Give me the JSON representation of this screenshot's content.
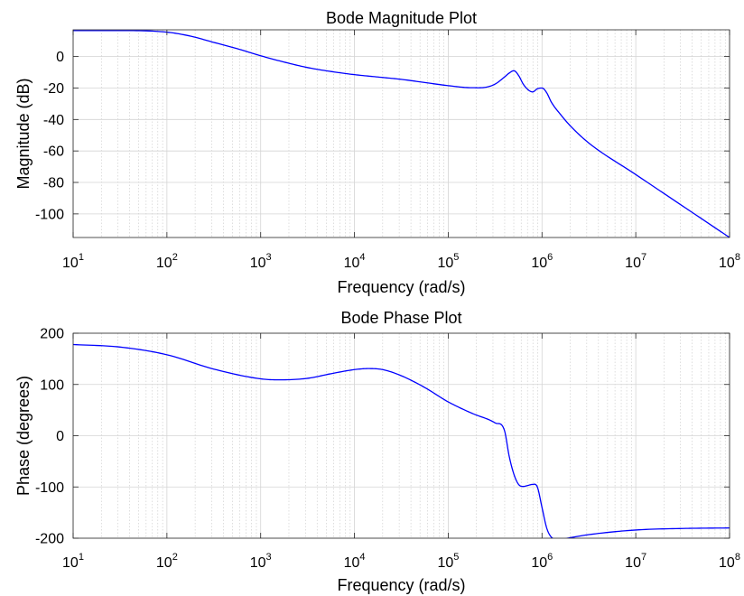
{
  "chart_data": [
    {
      "type": "line",
      "title": "Bode Magnitude Plot",
      "xlabel": "Frequency (rad/s)",
      "ylabel": "Magnitude (dB)",
      "xscale": "log",
      "xlim": [
        10,
        100000000
      ],
      "ylim": [
        -115,
        17
      ],
      "grid": true,
      "x_ticks": [
        {
          "base": "10",
          "exp": "1",
          "value": 10
        },
        {
          "base": "10",
          "exp": "2",
          "value": 100
        },
        {
          "base": "10",
          "exp": "3",
          "value": 1000
        },
        {
          "base": "10",
          "exp": "4",
          "value": 10000
        },
        {
          "base": "10",
          "exp": "5",
          "value": 100000
        },
        {
          "base": "10",
          "exp": "6",
          "value": 1000000
        },
        {
          "base": "10",
          "exp": "7",
          "value": 10000000
        },
        {
          "base": "10",
          "exp": "8",
          "value": 100000000
        }
      ],
      "y_ticks": [
        {
          "label": "0",
          "value": 0
        },
        {
          "label": "-20",
          "value": -20
        },
        {
          "label": "-40",
          "value": -40
        },
        {
          "label": "-60",
          "value": -60
        },
        {
          "label": "-80",
          "value": -80
        },
        {
          "label": "-100",
          "value": -100
        }
      ],
      "line_color": "#0000ff",
      "series": [
        {
          "x": [
            10,
            31.6,
            100,
            178,
            316,
            562,
            1000,
            1778,
            3162,
            5623,
            10000,
            17783,
            31623,
            56234,
            100000,
            177828,
            251189,
            316228,
            398107,
            446684,
            501187,
            562341,
            630957,
            707946,
            794328,
            891251,
            1000000,
            1122018,
            1258925,
            1584893,
            2000000,
            3162278,
            10000000,
            31622777,
            100000000
          ],
          "y": [
            16.5,
            16.5,
            15.5,
            13,
            9,
            5,
            0.5,
            -3.5,
            -7,
            -9.5,
            -11.5,
            -13,
            -14.5,
            -16.5,
            -18.5,
            -19.8,
            -19.5,
            -17.5,
            -13,
            -10.5,
            -9,
            -12,
            -17.5,
            -21,
            -22.5,
            -20.5,
            -20,
            -23,
            -29,
            -37,
            -44,
            -55,
            -75,
            -95,
            -115
          ]
        }
      ]
    },
    {
      "type": "line",
      "title": "Bode Phase Plot",
      "xlabel": "Frequency (rad/s)",
      "ylabel": "Phase (degrees)",
      "xscale": "log",
      "xlim": [
        10,
        100000000
      ],
      "ylim": [
        -200,
        200
      ],
      "grid": true,
      "x_ticks": [
        {
          "base": "10",
          "exp": "1",
          "value": 10
        },
        {
          "base": "10",
          "exp": "2",
          "value": 100
        },
        {
          "base": "10",
          "exp": "3",
          "value": 1000
        },
        {
          "base": "10",
          "exp": "4",
          "value": 10000
        },
        {
          "base": "10",
          "exp": "5",
          "value": 100000
        },
        {
          "base": "10",
          "exp": "6",
          "value": 1000000
        },
        {
          "base": "10",
          "exp": "7",
          "value": 10000000
        },
        {
          "base": "10",
          "exp": "8",
          "value": 100000000
        }
      ],
      "y_ticks": [
        {
          "label": "200",
          "value": 200
        },
        {
          "label": "100",
          "value": 100
        },
        {
          "label": "0",
          "value": 0
        },
        {
          "label": "-100",
          "value": -100
        },
        {
          "label": "-200",
          "value": -200
        }
      ],
      "line_color": "#0000ff",
      "series": [
        {
          "x": [
            10,
            31.6,
            100,
            316,
            1000,
            1585,
            3162,
            5623,
            10000,
            14125,
            20000,
            31623,
            56234,
            100000,
            177828,
            316228,
            398107,
            446684,
            501187,
            562341,
            630957,
            707946,
            794328,
            891251,
            1000000,
            1122018,
            1258925,
            1584893,
            2000000,
            3162278,
            10000000,
            31622777,
            100000000
          ],
          "y": [
            178,
            173,
            158,
            130,
            111,
            109,
            112,
            121,
            129,
            131,
            129,
            117,
            94,
            66,
            44,
            25,
            10,
            -40,
            -75,
            -95,
            -99,
            -97,
            -95,
            -100,
            -140,
            -180,
            -198,
            -202,
            -199,
            -193,
            -184,
            -181,
            -180
          ]
        }
      ]
    }
  ]
}
